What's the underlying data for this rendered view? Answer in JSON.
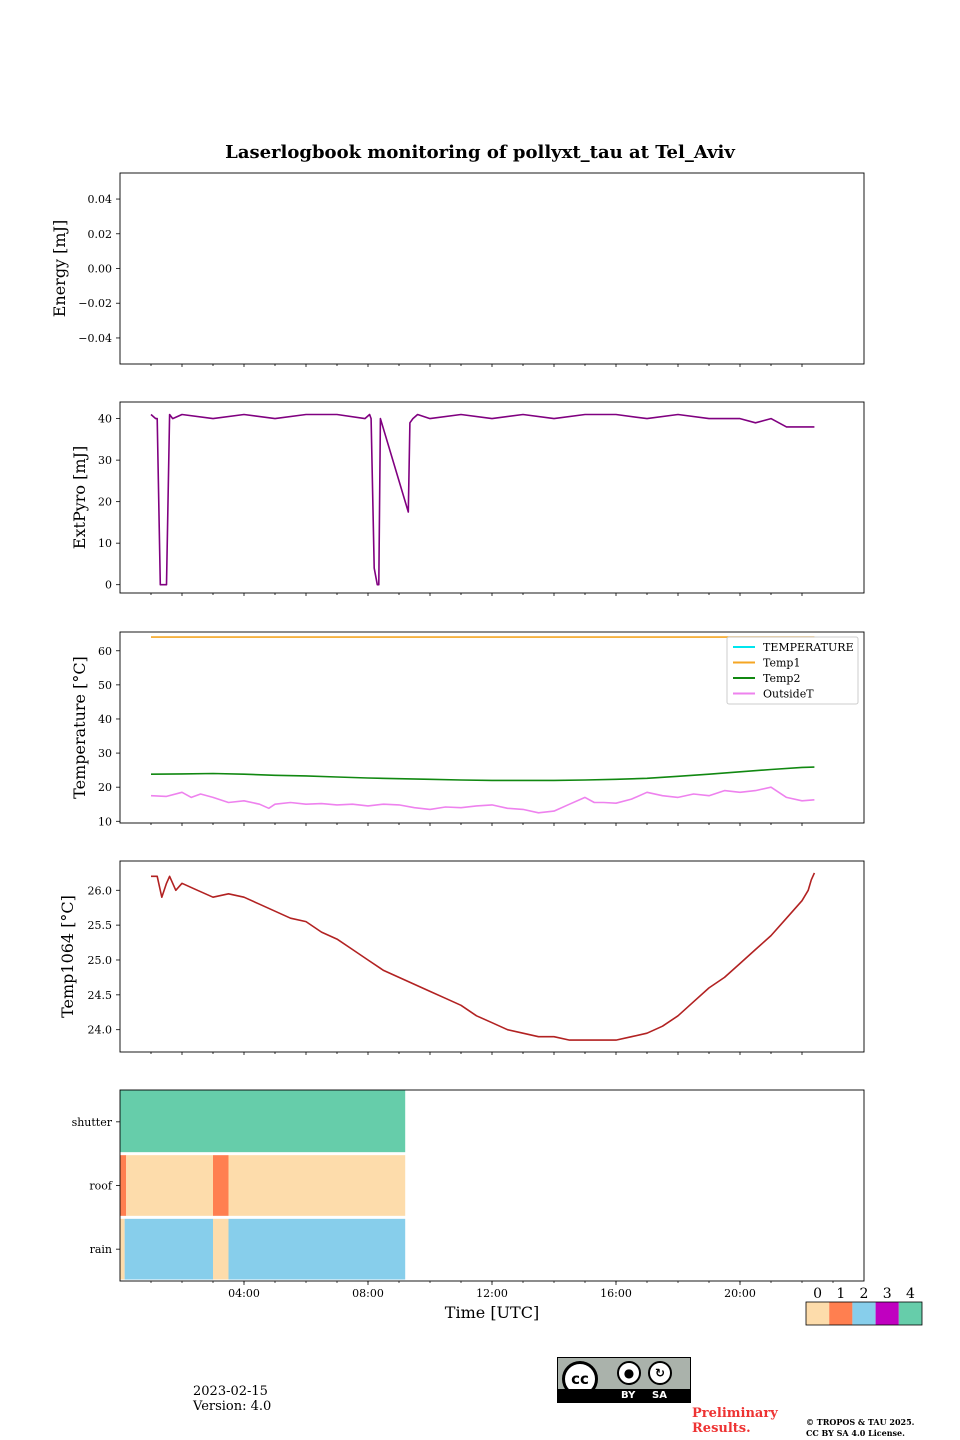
{
  "chart_data": [
    {
      "type": "line",
      "title": "Laserlogbook monitoring of pollyxt_tau at Tel_Aviv",
      "ylabel": "Energy [mJ]",
      "ylim": [
        -0.055,
        0.055
      ],
      "yticks": [
        0.04,
        0.02,
        0.0,
        -0.02,
        -0.04
      ],
      "ytick_labels": [
        "0.04",
        "0.02",
        "0.00",
        "−0.02",
        "−0.04"
      ],
      "series": []
    },
    {
      "type": "line",
      "ylabel": "ExtPyro [mJ]",
      "ylim": [
        -2,
        44
      ],
      "yticks": [
        0,
        10,
        20,
        30,
        40
      ],
      "ytick_labels": [
        "0",
        "10",
        "20",
        "30",
        "40"
      ],
      "series": [
        {
          "color": "#800080",
          "x": [
            1.0,
            1.15,
            1.2,
            1.3,
            1.35,
            1.45,
            1.5,
            1.6,
            1.7,
            2.0,
            3.0,
            4.0,
            5.0,
            6.0,
            7.0,
            7.9,
            8.05,
            8.1,
            8.2,
            8.3,
            8.35,
            8.4,
            9.3,
            9.35,
            9.45,
            9.6,
            10.0,
            11.0,
            12.0,
            13.0,
            14.0,
            15.0,
            16.0,
            17.0,
            18.0,
            19.0,
            20.0,
            20.5,
            21.0,
            21.5,
            22.0,
            22.4
          ],
          "y": [
            41,
            40,
            40,
            0,
            0,
            0,
            0,
            41,
            40,
            41,
            40,
            41,
            40,
            41,
            41,
            40,
            41,
            40,
            4,
            0,
            0,
            40,
            17.5,
            39,
            40,
            41,
            40,
            41,
            40,
            41,
            40,
            41,
            41,
            40,
            41,
            40,
            40,
            39,
            40,
            38,
            38,
            38
          ]
        }
      ]
    },
    {
      "type": "line",
      "ylabel": "Temperature [°C]",
      "ylim": [
        9.5,
        65.5
      ],
      "yticks": [
        10,
        20,
        30,
        40,
        50,
        60
      ],
      "ytick_labels": [
        "10",
        "20",
        "30",
        "40",
        "50",
        "60"
      ],
      "legend_position": "top-right",
      "series": [
        {
          "name": "TEMPERATURE",
          "color": "#00e5ee",
          "x": [],
          "y": []
        },
        {
          "name": "Temp1",
          "color": "#f5a623",
          "x": [
            1.0,
            22.4
          ],
          "y": [
            64,
            64
          ]
        },
        {
          "name": "Temp2",
          "color": "#118811",
          "x": [
            1.0,
            2.0,
            3.0,
            4.0,
            5.0,
            6.0,
            7.0,
            8.0,
            9.0,
            10.0,
            11.0,
            12.0,
            13.0,
            14.0,
            15.0,
            16.0,
            17.0,
            18.0,
            19.0,
            20.0,
            21.0,
            22.0,
            22.4
          ],
          "y": [
            23.8,
            23.9,
            24.0,
            23.8,
            23.5,
            23.3,
            23.0,
            22.7,
            22.5,
            22.3,
            22.1,
            22.0,
            22.0,
            22.0,
            22.1,
            22.3,
            22.6,
            23.2,
            23.8,
            24.5,
            25.2,
            25.8,
            25.9
          ]
        },
        {
          "name": "OutsideT",
          "color": "#ee82ee",
          "x": [
            1.0,
            1.5,
            2.0,
            2.3,
            2.6,
            3.0,
            3.5,
            4.0,
            4.5,
            4.8,
            5.0,
            5.5,
            6.0,
            6.5,
            7.0,
            7.5,
            8.0,
            8.5,
            9.0,
            9.5,
            10.0,
            10.5,
            11.0,
            11.5,
            12.0,
            12.5,
            13.0,
            13.5,
            14.0,
            14.5,
            15.0,
            15.3,
            15.6,
            16.0,
            16.5,
            17.0,
            17.5,
            18.0,
            18.5,
            19.0,
            19.5,
            20.0,
            20.5,
            21.0,
            21.5,
            22.0,
            22.4
          ],
          "y": [
            17.5,
            17.3,
            18.5,
            17.0,
            18.0,
            17.0,
            15.5,
            16.0,
            15.0,
            13.8,
            15.0,
            15.5,
            15.0,
            15.2,
            14.8,
            15.0,
            14.5,
            15.0,
            14.8,
            14.0,
            13.5,
            14.2,
            14.0,
            14.5,
            14.8,
            13.8,
            13.5,
            12.5,
            13.0,
            15.0,
            17.0,
            15.5,
            15.5,
            15.3,
            16.5,
            18.5,
            17.5,
            17.0,
            18.0,
            17.5,
            19.0,
            18.5,
            19.0,
            20.0,
            17.0,
            16.0,
            16.3
          ]
        }
      ]
    },
    {
      "type": "line",
      "ylabel": "Temp1064 [°C]",
      "ylim": [
        23.68,
        26.42
      ],
      "yticks": [
        24.0,
        24.5,
        25.0,
        25.5,
        26.0
      ],
      "ytick_labels": [
        "24.0",
        "24.5",
        "25.0",
        "25.5",
        "26.0"
      ],
      "series": [
        {
          "color": "#b22222",
          "x": [
            1.0,
            1.2,
            1.35,
            1.5,
            1.6,
            1.8,
            2.0,
            2.5,
            3.0,
            3.5,
            4.0,
            4.5,
            5.0,
            5.5,
            6.0,
            6.5,
            7.0,
            7.5,
            8.0,
            8.5,
            9.0,
            9.5,
            10.0,
            10.5,
            11.0,
            11.5,
            12.0,
            12.5,
            13.0,
            13.5,
            14.0,
            14.5,
            15.0,
            15.5,
            16.0,
            16.5,
            17.0,
            17.5,
            18.0,
            18.5,
            19.0,
            19.5,
            20.0,
            20.5,
            21.0,
            21.5,
            22.0,
            22.2,
            22.3,
            22.4
          ],
          "y": [
            26.2,
            26.2,
            25.9,
            26.1,
            26.2,
            26.0,
            26.1,
            26.0,
            25.9,
            25.95,
            25.9,
            25.8,
            25.7,
            25.6,
            25.55,
            25.4,
            25.3,
            25.15,
            25.0,
            24.85,
            24.75,
            24.65,
            24.55,
            24.45,
            24.35,
            24.2,
            24.1,
            24.0,
            23.95,
            23.9,
            23.9,
            23.85,
            23.85,
            23.85,
            23.85,
            23.9,
            23.95,
            24.05,
            24.2,
            24.4,
            24.6,
            24.75,
            24.95,
            25.15,
            25.35,
            25.6,
            25.85,
            26.0,
            26.15,
            26.25
          ]
        }
      ]
    },
    {
      "type": "heatmap",
      "rows": [
        "shutter",
        "roof",
        "rain"
      ],
      "xlabel": "Time [UTC]",
      "xlim": [
        0,
        24
      ],
      "xticks": [
        4,
        8,
        12,
        16,
        20
      ],
      "xtick_labels": [
        "04:00",
        "08:00",
        "12:00",
        "16:00",
        "20:00"
      ],
      "segments": {
        "shutter": [
          {
            "from": 0.0,
            "to": 9.2,
            "value": 4
          }
        ],
        "roof": [
          {
            "from": 0.0,
            "to": 0.2,
            "value": 1
          },
          {
            "from": 0.2,
            "to": 3.0,
            "value": 0
          },
          {
            "from": 3.0,
            "to": 3.5,
            "value": 1
          },
          {
            "from": 3.5,
            "to": 9.2,
            "value": 0
          }
        ],
        "rain": [
          {
            "from": 0.0,
            "to": 0.15,
            "value": 0
          },
          {
            "from": 0.15,
            "to": 3.0,
            "value": 2
          },
          {
            "from": 3.0,
            "to": 3.5,
            "value": 0
          },
          {
            "from": 3.5,
            "to": 9.2,
            "value": 2
          }
        ]
      },
      "colorbar": {
        "ticks": [
          "0",
          "1",
          "2",
          "3",
          "4"
        ],
        "colors": [
          "#fddcab",
          "#ff7f50",
          "#87ceeb",
          "#c000c0",
          "#66cdaa"
        ]
      }
    }
  ],
  "footer": {
    "date": "2023-02-15",
    "version": "Version: 4.0",
    "preliminary": [
      "Preliminary",
      "Results."
    ],
    "copyright": [
      "© TROPOS & TAU 2025.",
      "CC BY SA 4.0 License."
    ],
    "cc_labels": {
      "cc": "cc",
      "by": "BY",
      "sa": "SA"
    }
  }
}
